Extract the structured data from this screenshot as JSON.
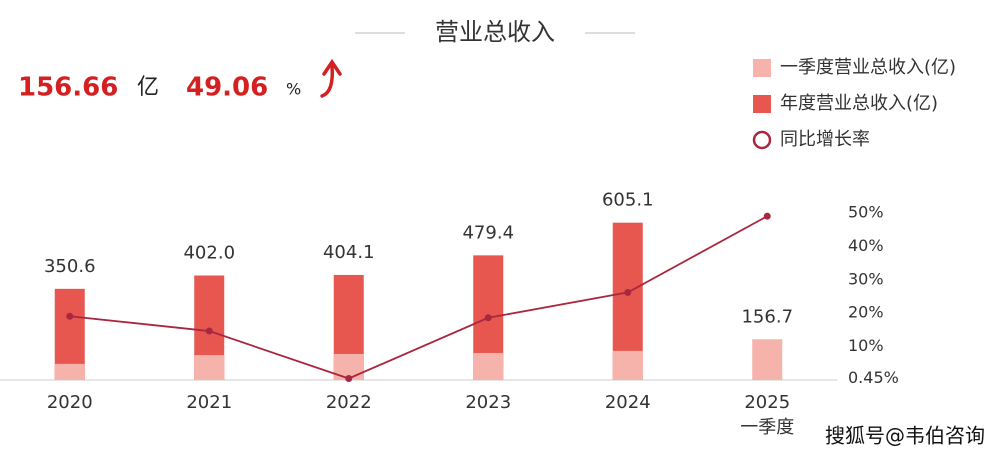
{
  "header": {
    "amount": "156.66",
    "amount_unit": "亿",
    "growth": "49.06",
    "growth_unit": "%"
  },
  "watermark": "搜狐号@韦伯咨询",
  "chart_data": {
    "type": "bar-line",
    "title": "营业总收入",
    "categories": [
      "2020",
      "2021",
      "2022",
      "2023",
      "2024",
      "2025"
    ],
    "category_notes": [
      null,
      null,
      null,
      null,
      null,
      "一季度"
    ],
    "ylim": [
      0,
      700
    ],
    "y2lim": [
      0,
      54.5
    ],
    "y2ticks": [
      {
        "value": 0.45,
        "label": "0.45%"
      },
      {
        "value": 10,
        "label": "10%"
      },
      {
        "value": 20,
        "label": "20%"
      },
      {
        "value": 30,
        "label": "30%"
      },
      {
        "value": 40,
        "label": "40%"
      },
      {
        "value": 50,
        "label": "50%"
      }
    ],
    "series": [
      {
        "name": "年度营业总收入(亿)",
        "type": "bar",
        "color": "#e8574f",
        "values": [
          350.6,
          402.0,
          404.1,
          479.4,
          605.1,
          null
        ],
        "value_labels": [
          "350.6",
          "402.0",
          "404.1",
          "479.4",
          "605.1",
          null
        ]
      },
      {
        "name": "一季度营业总收入(亿)",
        "type": "bar",
        "color": "#f6b3ab",
        "values": [
          62,
          96,
          100,
          104,
          112,
          156.7
        ],
        "value_labels": [
          null,
          null,
          null,
          null,
          null,
          "156.7"
        ]
      },
      {
        "name": "同比增长率",
        "type": "line",
        "axis": "y2",
        "color": "#a8283f",
        "values": [
          19.1,
          14.66,
          0.45,
          18.63,
          26.22,
          49.06
        ]
      }
    ],
    "legend_order": [
      1,
      0,
      2
    ]
  }
}
